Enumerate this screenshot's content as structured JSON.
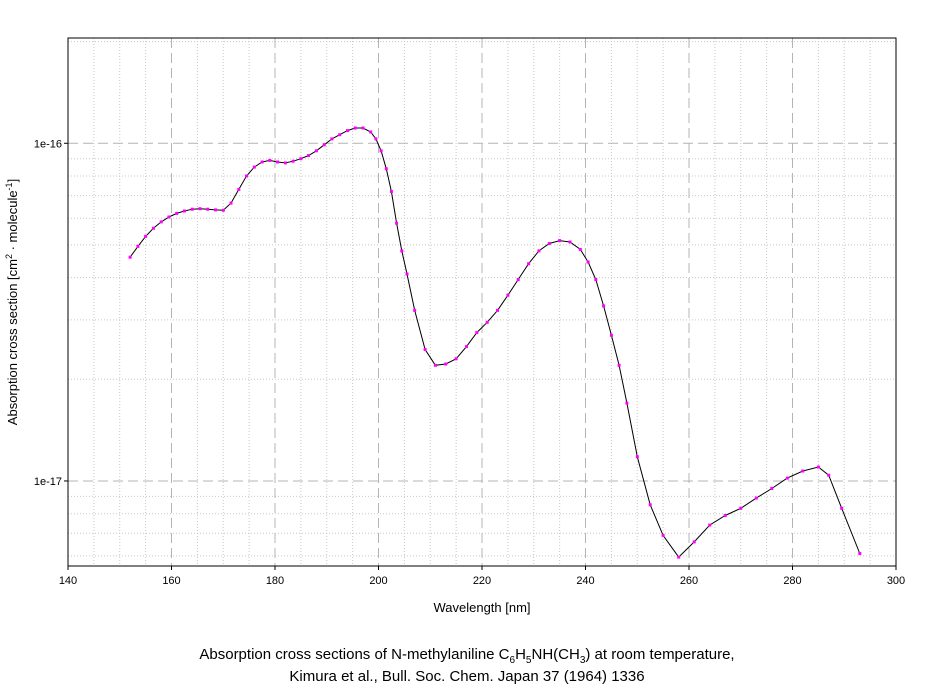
{
  "chart_data": {
    "type": "line",
    "xlabel": "Wavelength [nm]",
    "ylabel": {
      "prefix": "Absorption cross section [cm",
      "exp1": "2",
      "middle": " · molecule",
      "exp2": "-1",
      "suffix": "]"
    },
    "xlim": [
      140,
      300
    ],
    "ylim": [
      5.6e-18,
      2.05e-16
    ],
    "yscale": "log",
    "grid": true,
    "x_ticks": [
      "140",
      "160",
      "180",
      "200",
      "220",
      "240",
      "260",
      "280",
      "300"
    ],
    "y_ticks": [
      "1e-16",
      "1e-17"
    ],
    "line_color": "#000000",
    "marker_color": "#ff00ff",
    "series": [
      {
        "x": [
          152,
          153.5,
          155,
          156.5,
          158,
          159.5,
          161,
          162.5,
          164,
          165.5,
          167,
          168.5,
          170,
          171.5,
          173,
          174.5,
          176,
          177.5,
          179,
          180.5,
          182,
          183.5,
          185,
          186.5,
          188,
          189.5,
          191,
          192.5,
          194,
          195.5,
          197,
          198.5,
          199.5,
          200.5,
          201.5,
          202.5,
          203.5,
          204.5,
          205.5,
          207,
          209,
          211,
          213,
          215,
          217,
          219,
          221,
          223,
          225,
          227,
          229,
          231,
          233,
          235,
          237,
          239,
          240.5,
          242,
          243.5,
          245,
          246.5,
          248,
          250,
          252.5,
          255,
          258,
          261,
          264,
          267,
          270,
          273,
          276,
          279,
          282,
          285,
          287,
          289.5,
          293
        ],
        "y": [
          4.6e-17,
          4.95e-17,
          5.3e-17,
          5.6e-17,
          5.85e-17,
          6.05e-17,
          6.2e-17,
          6.3e-17,
          6.38e-17,
          6.4e-17,
          6.38e-17,
          6.35e-17,
          6.33e-17,
          6.65e-17,
          7.3e-17,
          8e-17,
          8.5e-17,
          8.8e-17,
          8.9e-17,
          8.8e-17,
          8.75e-17,
          8.85e-17,
          9e-17,
          9.2e-17,
          9.5e-17,
          9.9e-17,
          1.03e-16,
          1.06e-16,
          1.09e-16,
          1.11e-16,
          1.11e-16,
          1.08e-16,
          1.03e-16,
          9.5e-17,
          8.4e-17,
          7.2e-17,
          5.8e-17,
          4.8e-17,
          4.1e-17,
          3.2e-17,
          2.45e-17,
          2.2e-17,
          2.22e-17,
          2.3e-17,
          2.5e-17,
          2.75e-17,
          2.95e-17,
          3.2e-17,
          3.55e-17,
          3.95e-17,
          4.4e-17,
          4.8e-17,
          5.05e-17,
          5.15e-17,
          5.1e-17,
          4.85e-17,
          4.45e-17,
          3.95e-17,
          3.3e-17,
          2.7e-17,
          2.2e-17,
          1.7e-17,
          1.18e-17,
          8.5e-18,
          6.9e-18,
          5.95e-18,
          6.6e-18,
          7.4e-18,
          7.9e-18,
          8.3e-18,
          8.9e-18,
          9.5e-18,
          1.02e-17,
          1.07e-17,
          1.1e-17,
          1.04e-17,
          8.3e-18,
          6.1e-18
        ]
      }
    ]
  },
  "caption": {
    "line1_prefix": "Absorption cross sections of N-methylaniline C",
    "sub1": "6",
    "mid1": "H",
    "sub2": "5",
    "mid2": "NH(CH",
    "sub3": "3",
    "line1_suffix": ") at room temperature,",
    "line2": "Kimura et al., Bull. Soc. Chem. Japan 37 (1964) 1336"
  }
}
